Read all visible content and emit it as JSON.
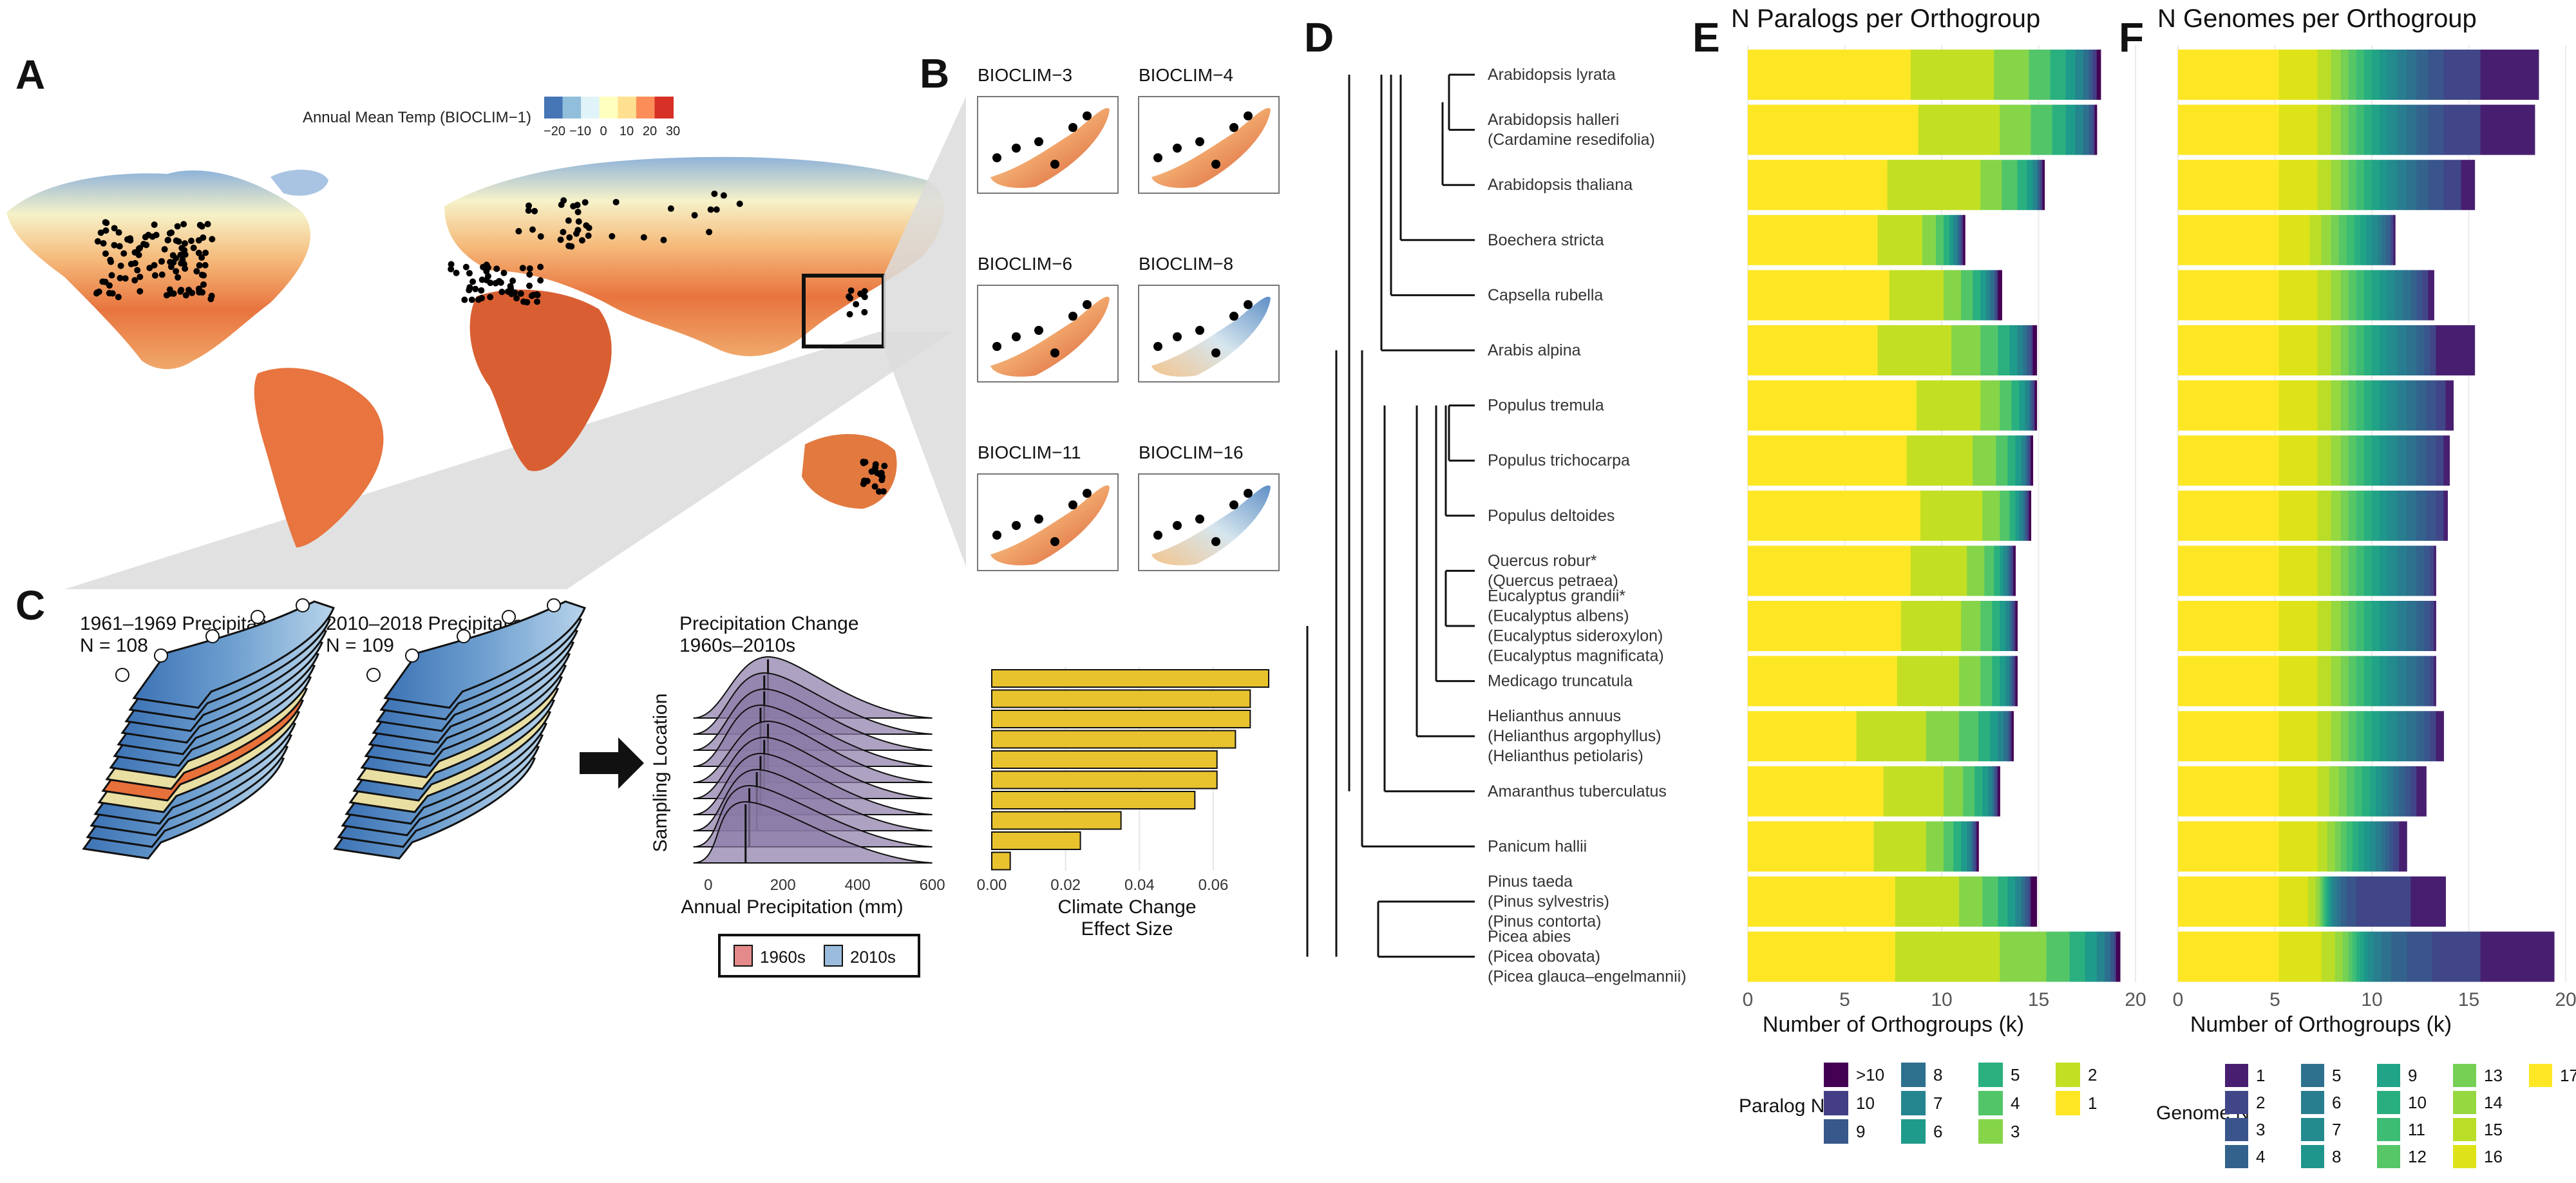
{
  "panels": {
    "A": {
      "letter": "A",
      "colorbar_title": "Annual Mean Temp (BIOCLIM−1)",
      "colorbar_ticks": [
        "−20",
        "−10",
        "0",
        "10",
        "20",
        "30"
      ],
      "colorbar_colors": [
        "#4575b4",
        "#91bfdb",
        "#e0f3f8",
        "#ffffbf",
        "#fee090",
        "#fc8d59",
        "#d73027"
      ]
    },
    "B": {
      "letter": "B",
      "maps": [
        "BIOCLIM−3",
        "BIOCLIM−4",
        "BIOCLIM−6",
        "BIOCLIM−8",
        "BIOCLIM−11",
        "BIOCLIM−16"
      ]
    },
    "C": {
      "letter": "C",
      "stack1_title": "1961–1969 Precipitation",
      "stack1_n": "N = 108",
      "stack2_title": "2010–2018 Precipitation",
      "stack2_n": "N = 109",
      "ridge_title_1": "Precipitation Change",
      "ridge_title_2": "1960s–2010s",
      "ridge_ylabel": "Sampling Location",
      "ridge_xlabel": "Annual Precipitation (mm)",
      "ridge_xticks": [
        "0",
        "200",
        "400",
        "600"
      ],
      "legend": [
        {
          "label": "1960s",
          "color": "#e58a8a"
        },
        {
          "label": "2010s",
          "color": "#9bbcdc"
        }
      ],
      "effect_xlabel_1": "Climate Change",
      "effect_xlabel_2": "Effect Size",
      "effect_xticks": [
        "0.00",
        "0.02",
        "0.04",
        "0.06"
      ],
      "bar_color": "#e8c32e"
    },
    "D": {
      "letter": "D",
      "taxa": [
        [
          "Arabidopsis lyrata"
        ],
        [
          "Arabidopsis halleri",
          "(Cardamine resedifolia)"
        ],
        [
          "Arabidopsis thaliana"
        ],
        [
          "Boechera stricta"
        ],
        [
          "Capsella rubella"
        ],
        [
          "Arabis alpina"
        ],
        [
          "Populus tremula"
        ],
        [
          "Populus trichocarpa"
        ],
        [
          "Populus deltoides"
        ],
        [
          "Quercus robur*",
          "(Quercus petraea)"
        ],
        [
          "Eucalyptus grandii*",
          "(Eucalyptus albens)",
          "(Eucalyptus sideroxylon)",
          "(Eucalyptus magnificata)"
        ],
        [
          "Medicago truncatula"
        ],
        [
          "Helianthus annuus",
          "(Helianthus argophyllus)",
          "(Helianthus petiolaris)"
        ],
        [
          "Amaranthus tuberculatus"
        ],
        [
          "Panicum hallii"
        ],
        [
          "Pinus taeda",
          "(Pinus sylvestris)",
          "(Pinus contorta)"
        ],
        [
          "Picea abies",
          "(Picea obovata)",
          "(Picea glauca–engelmannii)"
        ]
      ]
    },
    "E": {
      "letter": "E",
      "title": "N Paralogs per Orthogroup",
      "xlabel": "Number of Orthogroups (k)",
      "legend_title": "Paralog N"
    },
    "F": {
      "letter": "F",
      "title": "N Genomes per Orthogroup",
      "xlabel": "Number of Orthogroups (k)",
      "legend_title": "Genome N"
    }
  },
  "chart_data": [
    {
      "panel": "C",
      "type": "bar",
      "orientation": "horizontal",
      "xlabel": "Climate Change Effect Size",
      "xlim": [
        0,
        0.075
      ],
      "values": [
        0.075,
        0.07,
        0.07,
        0.066,
        0.061,
        0.061,
        0.055,
        0.035,
        0.024,
        0.005
      ]
    },
    {
      "panel": "C",
      "type": "area",
      "subtype": "ridgeline",
      "ylabel": "Sampling Location",
      "xlabel": "Annual Precipitation (mm)",
      "xlim": [
        -60,
        630
      ],
      "peaks": [
        160,
        150,
        150,
        140,
        160,
        150,
        140,
        130,
        110,
        100
      ]
    },
    {
      "panel": "E",
      "type": "bar",
      "stacked": true,
      "orientation": "horizontal",
      "title": "N Paralogs per Orthogroup",
      "xlabel": "Number of Orthogroups (k)",
      "xlim": [
        0,
        20
      ],
      "xticks": [
        0,
        5,
        10,
        15,
        20
      ],
      "legend_title": "Paralog N",
      "series_names": [
        "1",
        "2",
        "3",
        "4",
        "5",
        "6",
        "7",
        "8",
        "9",
        "10",
        ">10"
      ],
      "colors": [
        "#fde725",
        "#c2df23",
        "#86d549",
        "#52c569",
        "#2ab07f",
        "#1e9b8a",
        "#25858e",
        "#2d708e",
        "#38588c",
        "#433e85",
        "#440154"
      ],
      "rows": [
        {
          "taxon": "Arabidopsis lyrata",
          "values": [
            8.4,
            4.3,
            1.8,
            1.1,
            0.8,
            0.5,
            0.4,
            0.3,
            0.2,
            0.2,
            0.2
          ]
        },
        {
          "taxon": "Arabidopsis halleri",
          "values": [
            8.8,
            4.2,
            1.6,
            1.1,
            0.7,
            0.5,
            0.4,
            0.3,
            0.2,
            0.1,
            0.1
          ]
        },
        {
          "taxon": "Arabidopsis thaliana",
          "values": [
            7.2,
            4.8,
            1.1,
            0.8,
            0.5,
            0.3,
            0.2,
            0.1,
            0.1,
            0.1,
            0.1
          ]
        },
        {
          "taxon": "Boechera stricta",
          "values": [
            6.7,
            2.3,
            0.7,
            0.4,
            0.3,
            0.2,
            0.2,
            0.1,
            0.1,
            0.1,
            0.1
          ]
        },
        {
          "taxon": "Capsella rubella",
          "values": [
            7.3,
            2.8,
            0.9,
            0.6,
            0.4,
            0.3,
            0.2,
            0.2,
            0.1,
            0.1,
            0.2
          ]
        },
        {
          "taxon": "Arabis alpina",
          "values": [
            6.7,
            3.8,
            1.5,
            0.9,
            0.6,
            0.4,
            0.3,
            0.2,
            0.2,
            0.1,
            0.2
          ]
        },
        {
          "taxon": "Populus tremula",
          "values": [
            8.7,
            3.3,
            1.0,
            0.6,
            0.4,
            0.3,
            0.2,
            0.1,
            0.1,
            0.1,
            0.1
          ]
        },
        {
          "taxon": "Populus trichocarpa",
          "values": [
            8.2,
            3.4,
            1.2,
            0.6,
            0.4,
            0.3,
            0.2,
            0.1,
            0.1,
            0.1,
            0.1
          ]
        },
        {
          "taxon": "Populus deltoides",
          "values": [
            8.9,
            3.2,
            0.9,
            0.5,
            0.3,
            0.2,
            0.2,
            0.1,
            0.1,
            0.1,
            0.1
          ]
        },
        {
          "taxon": "Quercus robur*",
          "values": [
            8.4,
            2.9,
            0.9,
            0.5,
            0.3,
            0.2,
            0.2,
            0.1,
            0.1,
            0.1,
            0.1
          ]
        },
        {
          "taxon": "Eucalyptus grandii*",
          "values": [
            7.9,
            3.1,
            1.0,
            0.6,
            0.4,
            0.3,
            0.2,
            0.1,
            0.1,
            0.1,
            0.1
          ]
        },
        {
          "taxon": "Medicago truncatula",
          "values": [
            7.7,
            3.2,
            1.1,
            0.6,
            0.4,
            0.3,
            0.2,
            0.1,
            0.1,
            0.1,
            0.1
          ]
        },
        {
          "taxon": "Helianthus annuus",
          "values": [
            5.6,
            3.6,
            1.7,
            1.0,
            0.6,
            0.4,
            0.3,
            0.2,
            0.1,
            0.1,
            0.1
          ]
        },
        {
          "taxon": "Amaranthus tuberculatus",
          "values": [
            7.0,
            3.1,
            1.0,
            0.6,
            0.4,
            0.3,
            0.2,
            0.1,
            0.1,
            0.1,
            0.1
          ]
        },
        {
          "taxon": "Panicum hallii",
          "values": [
            6.5,
            2.7,
            0.9,
            0.5,
            0.4,
            0.3,
            0.2,
            0.1,
            0.1,
            0.1,
            0.1
          ]
        },
        {
          "taxon": "Pinus taeda",
          "values": [
            7.6,
            3.3,
            1.2,
            0.8,
            0.5,
            0.4,
            0.3,
            0.2,
            0.2,
            0.1,
            0.3
          ]
        },
        {
          "taxon": "Picea abies",
          "values": [
            7.6,
            5.4,
            2.4,
            1.2,
            0.8,
            0.6,
            0.4,
            0.3,
            0.2,
            0.1,
            0.2
          ]
        }
      ]
    },
    {
      "panel": "F",
      "type": "bar",
      "stacked": true,
      "orientation": "horizontal",
      "title": "N Genomes per Orthogroup",
      "xlabel": "Number of Orthogroups (k)",
      "xlim": [
        0,
        20
      ],
      "xticks": [
        0,
        5,
        10,
        15,
        20
      ],
      "legend_title": "Genome N",
      "series_names": [
        "17",
        "16",
        "15",
        "14",
        "13",
        "12",
        "11",
        "10",
        "9",
        "8",
        "7",
        "6",
        "5",
        "4",
        "3",
        "2",
        "1"
      ],
      "colors": [
        "#fde725",
        "#dde318",
        "#bade28",
        "#95d840",
        "#75d054",
        "#56c667",
        "#3dbc74",
        "#29af7f",
        "#20a386",
        "#1f968b",
        "#238a8d",
        "#287d8e",
        "#2d718e",
        "#33638d",
        "#39558c",
        "#404688",
        "#481f70"
      ],
      "rows": [
        {
          "taxon": "Arabidopsis lyrata",
          "values": [
            5.2,
            2.0,
            0.7,
            0.5,
            0.4,
            0.4,
            0.4,
            0.4,
            0.4,
            0.4,
            0.5,
            0.5,
            0.5,
            0.6,
            0.8,
            1.9,
            3.0
          ]
        },
        {
          "taxon": "Arabidopsis halleri",
          "values": [
            5.2,
            2.0,
            0.7,
            0.5,
            0.4,
            0.4,
            0.4,
            0.4,
            0.4,
            0.4,
            0.5,
            0.5,
            0.5,
            0.6,
            0.8,
            1.9,
            2.8
          ]
        },
        {
          "taxon": "Arabidopsis thaliana",
          "values": [
            5.2,
            2.0,
            0.7,
            0.5,
            0.4,
            0.4,
            0.4,
            0.4,
            0.4,
            0.4,
            0.5,
            0.5,
            0.5,
            0.6,
            0.8,
            0.9,
            0.7
          ]
        },
        {
          "taxon": "Boechera stricta",
          "values": [
            5.2,
            1.6,
            0.6,
            0.5,
            0.4,
            0.4,
            0.4,
            0.3,
            0.3,
            0.3,
            0.3,
            0.2,
            0.2,
            0.2,
            0.1,
            0.1,
            0.1
          ]
        },
        {
          "taxon": "Capsella rubella",
          "values": [
            5.2,
            2.0,
            0.7,
            0.5,
            0.4,
            0.4,
            0.4,
            0.4,
            0.4,
            0.4,
            0.4,
            0.4,
            0.4,
            0.3,
            0.3,
            0.3,
            0.3
          ]
        },
        {
          "taxon": "Arabis alpina",
          "values": [
            5.2,
            2.0,
            0.7,
            0.5,
            0.4,
            0.4,
            0.4,
            0.4,
            0.4,
            0.4,
            0.5,
            0.5,
            0.5,
            0.4,
            0.3,
            0.3,
            2.0
          ]
        },
        {
          "taxon": "Populus tremula",
          "values": [
            5.2,
            2.0,
            0.7,
            0.5,
            0.4,
            0.4,
            0.4,
            0.4,
            0.4,
            0.4,
            0.5,
            0.5,
            0.5,
            0.5,
            0.5,
            0.5,
            0.4
          ]
        },
        {
          "taxon": "Populus trichocarpa",
          "values": [
            5.2,
            2.0,
            0.7,
            0.5,
            0.4,
            0.4,
            0.4,
            0.4,
            0.4,
            0.4,
            0.5,
            0.5,
            0.5,
            0.5,
            0.5,
            0.4,
            0.3
          ]
        },
        {
          "taxon": "Populus deltoides",
          "values": [
            5.2,
            2.0,
            0.7,
            0.5,
            0.4,
            0.4,
            0.4,
            0.4,
            0.4,
            0.4,
            0.5,
            0.5,
            0.5,
            0.5,
            0.5,
            0.4,
            0.2
          ]
        },
        {
          "taxon": "Quercus robur*",
          "values": [
            5.2,
            2.0,
            0.7,
            0.5,
            0.4,
            0.4,
            0.4,
            0.4,
            0.4,
            0.4,
            0.5,
            0.5,
            0.5,
            0.4,
            0.3,
            0.2,
            0.1
          ]
        },
        {
          "taxon": "Eucalyptus grandii*",
          "values": [
            5.2,
            2.0,
            0.7,
            0.5,
            0.4,
            0.4,
            0.4,
            0.4,
            0.4,
            0.4,
            0.5,
            0.5,
            0.5,
            0.4,
            0.3,
            0.2,
            0.1
          ]
        },
        {
          "taxon": "Medicago truncatula",
          "values": [
            5.2,
            2.0,
            0.7,
            0.5,
            0.4,
            0.4,
            0.4,
            0.4,
            0.4,
            0.4,
            0.5,
            0.5,
            0.5,
            0.4,
            0.3,
            0.2,
            0.1
          ]
        },
        {
          "taxon": "Helianthus annuus",
          "values": [
            5.2,
            2.0,
            0.7,
            0.5,
            0.4,
            0.4,
            0.4,
            0.4,
            0.4,
            0.4,
            0.5,
            0.5,
            0.5,
            0.4,
            0.3,
            0.3,
            0.4
          ]
        },
        {
          "taxon": "Amaranthus tuberculatus",
          "values": [
            5.2,
            2.0,
            0.6,
            0.5,
            0.4,
            0.4,
            0.4,
            0.4,
            0.3,
            0.3,
            0.3,
            0.3,
            0.3,
            0.3,
            0.3,
            0.3,
            0.5
          ]
        },
        {
          "taxon": "Panicum hallii",
          "values": [
            5.2,
            2.0,
            0.5,
            0.4,
            0.3,
            0.3,
            0.3,
            0.3,
            0.3,
            0.3,
            0.3,
            0.3,
            0.2,
            0.2,
            0.2,
            0.3,
            0.4
          ]
        },
        {
          "taxon": "Pinus taeda",
          "values": [
            5.2,
            1.5,
            0.4,
            0.2,
            0.1,
            0.1,
            0.1,
            0.1,
            0.1,
            0.1,
            0.1,
            0.2,
            0.2,
            0.3,
            0.5,
            2.8,
            1.8
          ]
        },
        {
          "taxon": "Picea abies",
          "values": [
            5.2,
            2.2,
            0.7,
            0.4,
            0.3,
            0.2,
            0.2,
            0.2,
            0.2,
            0.2,
            0.3,
            0.4,
            0.5,
            0.8,
            1.3,
            2.5,
            3.8
          ]
        }
      ]
    }
  ]
}
